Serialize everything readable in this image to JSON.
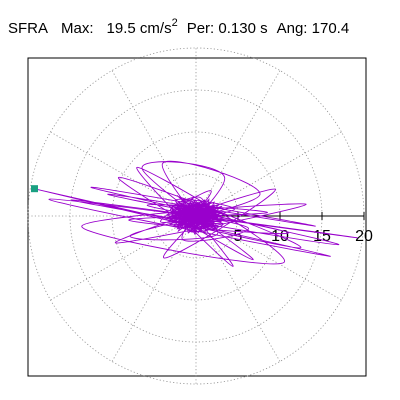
{
  "header": {
    "component": "SFRA",
    "max_label": "Max:",
    "max_value": "19.5",
    "max_unit": "cm/s",
    "max_unit_exp": "2",
    "per_label": "Per:",
    "per_value": "0.130 s",
    "ang_label": "Ang:",
    "ang_value": "170.4"
  },
  "chart_data": {
    "type": "scatter",
    "subtype": "polar-particle-motion-trace",
    "radial_unit": "cm/s^2",
    "radial_axis": {
      "range": [
        0,
        20
      ],
      "ticks": [
        5,
        10,
        15,
        20
      ],
      "tick_labels": [
        "5",
        "10",
        "15",
        "20"
      ]
    },
    "grid": {
      "rings": [
        5,
        10,
        15,
        20
      ],
      "spokes_deg": [
        0,
        30,
        60,
        90,
        120,
        150,
        180,
        210,
        240,
        270,
        300,
        330
      ],
      "style": "dotted",
      "color": "#909090"
    },
    "peak": {
      "amplitude": 19.5,
      "angle_deg": 170.4,
      "marker_color": "#1aa082"
    },
    "trace_color": "#9900cc",
    "trace": [
      [
        0.2,
        0.1
      ],
      [
        1.5,
        -0.6
      ],
      [
        -1.2,
        0.9
      ],
      [
        2.4,
        0.3
      ],
      [
        -2.0,
        -1.1
      ],
      [
        1.0,
        1.6
      ],
      [
        -0.8,
        -1.8
      ],
      [
        3.2,
        -0.9
      ],
      [
        -3.0,
        0.6
      ],
      [
        0.5,
        2.2
      ],
      [
        2.1,
        -1.7
      ],
      [
        -2.4,
        1.9
      ],
      [
        4.6,
        0.8
      ],
      [
        -4.2,
        -0.7
      ],
      [
        1.8,
        3.0
      ],
      [
        -1.6,
        -2.8
      ],
      [
        6.2,
        -1.4
      ],
      [
        -5.8,
        1.3
      ],
      [
        8.5,
        0.4
      ],
      [
        -8.0,
        -0.5
      ],
      [
        11.0,
        -2.0
      ],
      [
        -10.5,
        2.6
      ],
      [
        14.2,
        -1.2
      ],
      [
        -12.5,
        3.4
      ],
      [
        17.0,
        -3.4
      ],
      [
        -14.8,
        1.9
      ],
      [
        19.2,
        -2.6
      ],
      [
        -17.5,
        2.0
      ],
      [
        16.0,
        -4.8
      ],
      [
        -19.23,
        3.24
      ],
      [
        12.4,
        -3.8
      ],
      [
        -9.2,
        4.6
      ],
      [
        6.8,
        -5.2
      ],
      [
        -6.4,
        5.6
      ],
      [
        3.4,
        4.6
      ],
      [
        -3.8,
        -5.0
      ],
      [
        9.4,
        3.2
      ],
      [
        -9.6,
        -3.2
      ],
      [
        13.1,
        1.4
      ],
      [
        -13.6,
        -1.2
      ],
      [
        10.5,
        -5.5
      ],
      [
        -7.0,
        5.8
      ],
      [
        4.4,
        -6.0
      ],
      [
        -4.0,
        6.2
      ],
      [
        7.6,
        2.5
      ],
      [
        -7.8,
        -2.3
      ],
      [
        2.5,
        -2.2
      ],
      [
        -2.2,
        2.4
      ],
      [
        0.6,
        -0.4
      ],
      [
        -0.4,
        0.6
      ]
    ]
  }
}
